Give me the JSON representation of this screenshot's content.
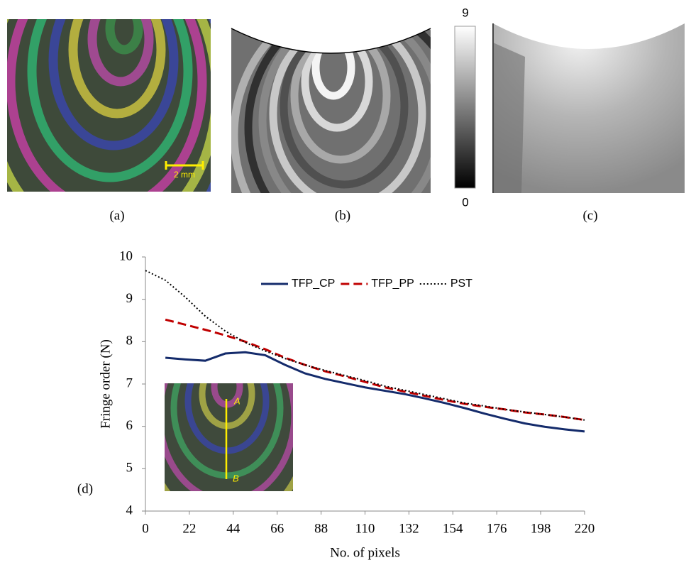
{
  "panels": [
    {
      "label": "(a)",
      "scale_bar": "2 mm"
    },
    {
      "label": "(b)"
    },
    {
      "label": "(c)"
    },
    {
      "label": "(d)"
    }
  ],
  "colorbar": {
    "max": 9,
    "min": 0
  },
  "inset": {
    "top": "A",
    "bottom": "B"
  },
  "chart_data": {
    "type": "line",
    "xlabel": "No. of pixels",
    "ylabel": "Fringe order (N)",
    "x": [
      0,
      10,
      20,
      30,
      40,
      50,
      60,
      70,
      80,
      90,
      100,
      110,
      120,
      130,
      140,
      150,
      160,
      170,
      180,
      190,
      200,
      210,
      220
    ],
    "xlim": [
      0,
      220
    ],
    "xticks": [
      0,
      22,
      44,
      66,
      88,
      110,
      132,
      154,
      176,
      198,
      220
    ],
    "ylim": [
      4,
      10
    ],
    "yticks": [
      4,
      5,
      6,
      7,
      8,
      9,
      10
    ],
    "legend": "top",
    "series": [
      {
        "name": "TFP_CP",
        "color": "#142b6b",
        "line_style": "solid",
        "values": [
          null,
          7.62,
          7.58,
          7.55,
          7.72,
          7.75,
          7.68,
          7.45,
          7.25,
          7.12,
          7.02,
          6.92,
          6.84,
          6.76,
          6.66,
          6.55,
          6.43,
          6.3,
          6.18,
          6.07,
          5.99,
          5.93,
          5.88
        ]
      },
      {
        "name": "TFP_PP",
        "color": "#c00000",
        "line_style": "dashed",
        "values": [
          null,
          8.52,
          8.4,
          8.28,
          8.15,
          8.0,
          7.82,
          7.62,
          7.45,
          7.3,
          7.18,
          7.05,
          6.92,
          6.82,
          6.72,
          6.62,
          6.53,
          6.46,
          6.4,
          6.33,
          6.28,
          6.22,
          6.15
        ]
      },
      {
        "name": "PST",
        "color": "#000000",
        "line_style": "dotted",
        "values": [
          9.68,
          9.45,
          9.05,
          8.6,
          8.25,
          7.98,
          7.78,
          7.6,
          7.45,
          7.32,
          7.2,
          7.08,
          6.95,
          6.85,
          6.75,
          6.65,
          6.55,
          6.48,
          6.4,
          6.34,
          6.28,
          6.22,
          6.15
        ]
      }
    ]
  }
}
